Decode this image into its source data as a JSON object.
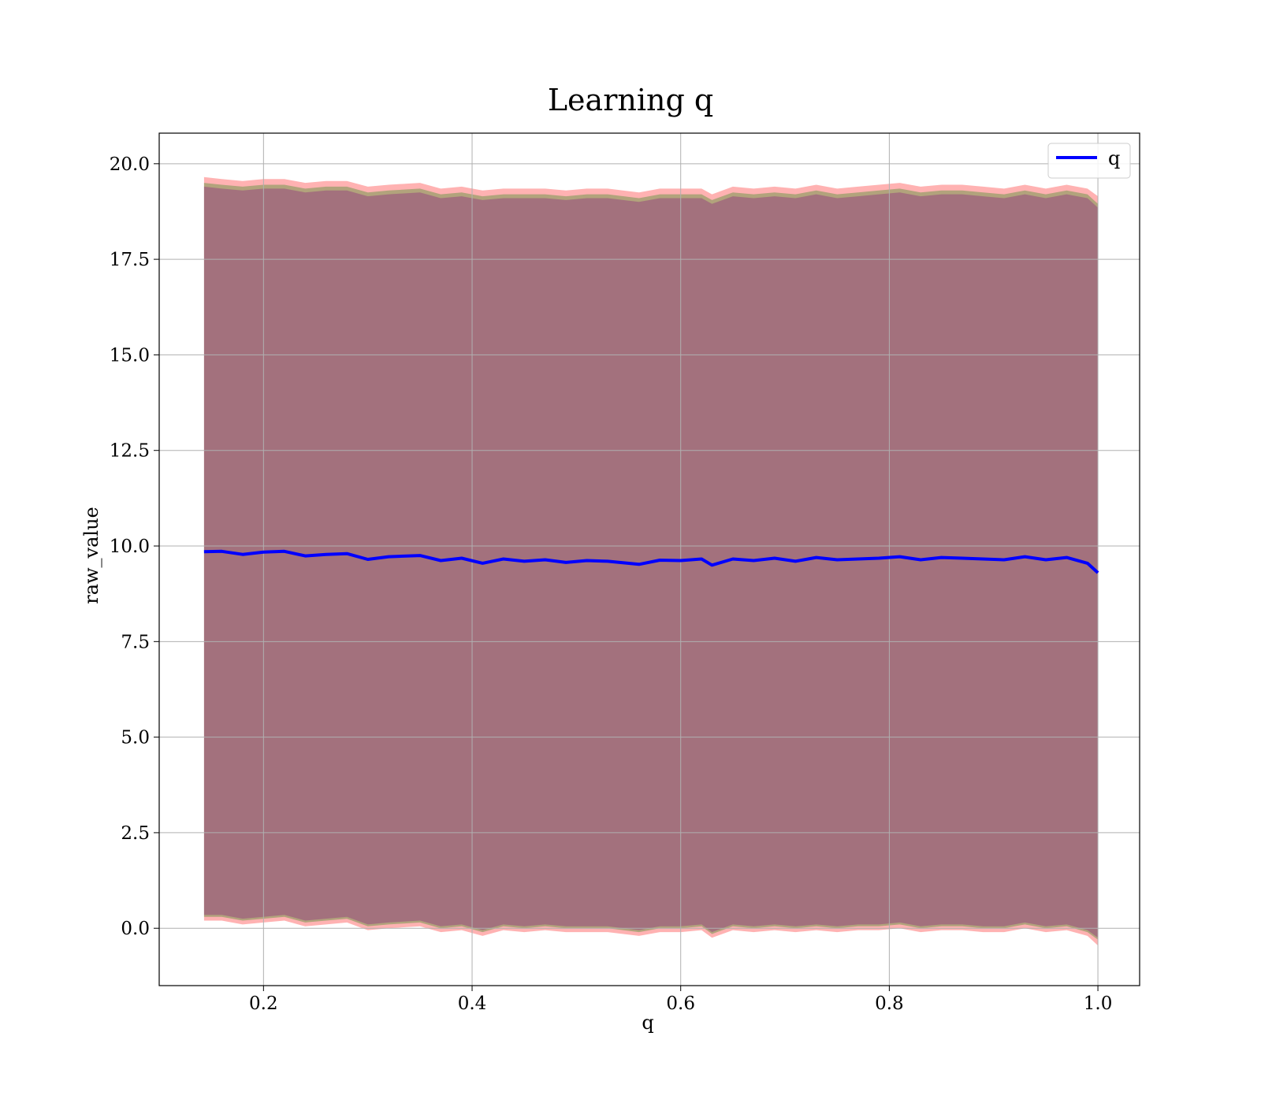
{
  "chart_data": {
    "type": "line",
    "title": "Learning q",
    "xlabel": "q",
    "ylabel": "raw_value",
    "xlim": [
      0.1,
      1.04
    ],
    "ylim": [
      -1.5,
      20.8
    ],
    "xticks": [
      0.2,
      0.4,
      0.6,
      0.8,
      1.0
    ],
    "xtick_labels": [
      "0.2",
      "0.4",
      "0.6",
      "0.8",
      "1.0"
    ],
    "yticks": [
      0.0,
      2.5,
      5.0,
      7.5,
      10.0,
      12.5,
      15.0,
      17.5,
      20.0
    ],
    "ytick_labels": [
      "0.0",
      "2.5",
      "5.0",
      "7.5",
      "10.0",
      "12.5",
      "15.0",
      "17.5",
      "20.0"
    ],
    "grid": true,
    "legend_placement": "top-right",
    "series": [
      {
        "name": "q",
        "color": "#0000ff",
        "x": [
          0.143,
          0.16,
          0.18,
          0.2,
          0.22,
          0.24,
          0.26,
          0.28,
          0.3,
          0.32,
          0.35,
          0.37,
          0.39,
          0.41,
          0.43,
          0.45,
          0.47,
          0.49,
          0.51,
          0.53,
          0.56,
          0.58,
          0.6,
          0.62,
          0.63,
          0.65,
          0.67,
          0.69,
          0.71,
          0.73,
          0.75,
          0.77,
          0.79,
          0.81,
          0.83,
          0.85,
          0.87,
          0.89,
          0.91,
          0.93,
          0.95,
          0.97,
          0.99,
          1.0
        ],
        "y": [
          9.85,
          9.86,
          9.78,
          9.84,
          9.86,
          9.74,
          9.78,
          9.8,
          9.65,
          9.72,
          9.75,
          9.62,
          9.68,
          9.55,
          9.66,
          9.6,
          9.64,
          9.57,
          9.62,
          9.6,
          9.52,
          9.63,
          9.62,
          9.66,
          9.5,
          9.66,
          9.62,
          9.68,
          9.6,
          9.7,
          9.64,
          9.66,
          9.68,
          9.72,
          9.64,
          9.7,
          9.68,
          9.66,
          9.64,
          9.72,
          9.64,
          9.7,
          9.55,
          9.3
        ]
      }
    ],
    "bands": [
      {
        "color": "#ff0000",
        "opacity": 0.3,
        "upper": [
          19.65,
          19.6,
          19.55,
          19.6,
          19.6,
          19.5,
          19.55,
          19.55,
          19.4,
          19.45,
          19.5,
          19.35,
          19.4,
          19.3,
          19.35,
          19.35,
          19.35,
          19.3,
          19.35,
          19.35,
          19.25,
          19.35,
          19.35,
          19.35,
          19.2,
          19.4,
          19.35,
          19.4,
          19.35,
          19.45,
          19.35,
          19.4,
          19.45,
          19.5,
          19.4,
          19.45,
          19.45,
          19.4,
          19.35,
          19.45,
          19.35,
          19.45,
          19.35,
          19.15
        ],
        "lower": [
          0.2,
          0.2,
          0.1,
          0.15,
          0.2,
          0.05,
          0.1,
          0.15,
          -0.05,
          0.0,
          0.05,
          -0.1,
          -0.05,
          -0.2,
          -0.05,
          -0.1,
          -0.05,
          -0.1,
          -0.1,
          -0.1,
          -0.2,
          -0.1,
          -0.1,
          -0.05,
          -0.25,
          -0.05,
          -0.1,
          -0.05,
          -0.1,
          -0.05,
          -0.1,
          -0.05,
          -0.05,
          0.0,
          -0.1,
          -0.05,
          -0.05,
          -0.1,
          -0.1,
          0.0,
          -0.1,
          -0.05,
          -0.2,
          -0.45
        ]
      },
      {
        "color": "#008000",
        "opacity": 0.3,
        "upper": [
          19.5,
          19.45,
          19.4,
          19.45,
          19.45,
          19.35,
          19.4,
          19.4,
          19.25,
          19.3,
          19.35,
          19.2,
          19.25,
          19.15,
          19.2,
          19.2,
          19.2,
          19.15,
          19.2,
          19.2,
          19.1,
          19.2,
          19.2,
          19.2,
          19.05,
          19.25,
          19.2,
          19.25,
          19.2,
          19.3,
          19.2,
          19.25,
          19.3,
          19.35,
          19.25,
          19.3,
          19.3,
          19.25,
          19.2,
          19.3,
          19.2,
          19.3,
          19.2,
          18.95
        ],
        "lower": [
          0.3,
          0.3,
          0.2,
          0.25,
          0.3,
          0.15,
          0.2,
          0.25,
          0.05,
          0.1,
          0.15,
          0.0,
          0.05,
          -0.1,
          0.05,
          0.0,
          0.05,
          0.0,
          0.0,
          0.0,
          -0.1,
          0.0,
          0.0,
          0.05,
          -0.15,
          0.05,
          0.0,
          0.05,
          0.0,
          0.05,
          0.0,
          0.05,
          0.05,
          0.1,
          0.0,
          0.05,
          0.05,
          0.0,
          0.0,
          0.1,
          0.0,
          0.05,
          -0.1,
          -0.3
        ]
      },
      {
        "color": "#800080",
        "opacity": 0.3,
        "upper": [
          19.4,
          19.35,
          19.3,
          19.35,
          19.35,
          19.25,
          19.3,
          19.3,
          19.15,
          19.2,
          19.25,
          19.1,
          19.15,
          19.05,
          19.1,
          19.1,
          19.1,
          19.05,
          19.1,
          19.1,
          19.0,
          19.1,
          19.1,
          19.1,
          18.95,
          19.15,
          19.1,
          19.15,
          19.1,
          19.2,
          19.1,
          19.15,
          19.2,
          19.25,
          19.15,
          19.2,
          19.2,
          19.15,
          19.1,
          19.2,
          19.1,
          19.2,
          19.1,
          18.85
        ],
        "lower": [
          0.35,
          0.35,
          0.25,
          0.3,
          0.35,
          0.2,
          0.25,
          0.3,
          0.1,
          0.15,
          0.2,
          0.05,
          0.1,
          -0.05,
          0.1,
          0.05,
          0.1,
          0.05,
          0.05,
          0.05,
          -0.05,
          0.05,
          0.05,
          0.1,
          -0.1,
          0.1,
          0.05,
          0.1,
          0.05,
          0.1,
          0.05,
          0.1,
          0.1,
          0.15,
          0.05,
          0.1,
          0.1,
          0.05,
          0.05,
          0.15,
          0.05,
          0.1,
          -0.05,
          -0.25
        ]
      }
    ]
  }
}
